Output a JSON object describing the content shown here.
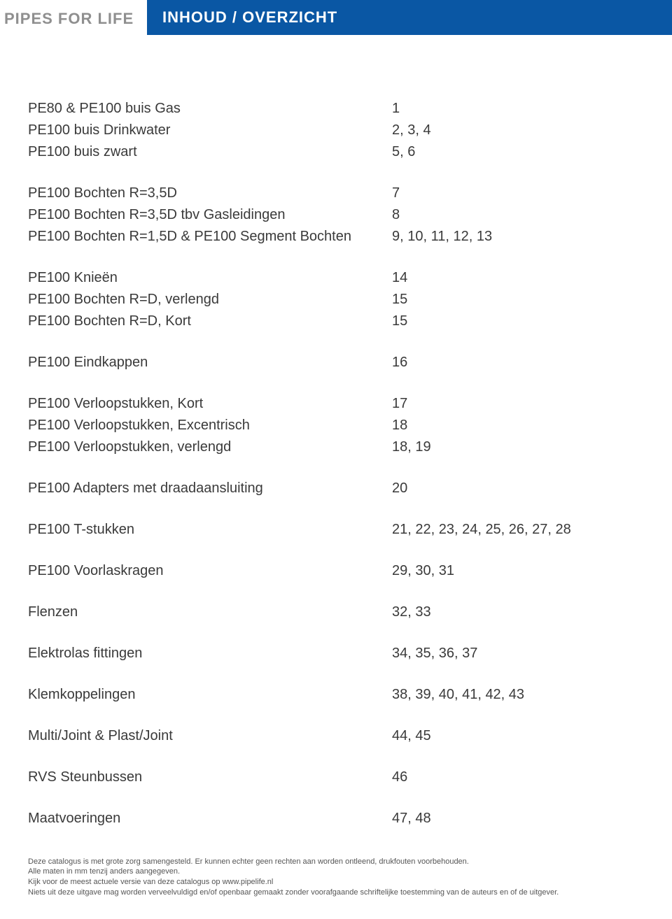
{
  "header": {
    "brand": "PIPES FOR LIFE",
    "title": "INHOUD / OVERZICHT"
  },
  "colors": {
    "brand_text": "#8f8f8f",
    "title_bg": "#0a57a4",
    "title_text": "#ffffff",
    "body_text": "#3a3a3a",
    "footer_text": "#555555"
  },
  "toc": [
    [
      {
        "label": "PE80 & PE100 buis Gas",
        "pages": "1"
      },
      {
        "label": "PE100 buis Drinkwater",
        "pages": "2, 3, 4"
      },
      {
        "label": "PE100 buis zwart",
        "pages": "5, 6"
      }
    ],
    [
      {
        "label": "PE100 Bochten R=3,5D",
        "pages": "7"
      },
      {
        "label": "PE100 Bochten R=3,5D tbv Gasleidingen",
        "pages": "8"
      },
      {
        "label": "PE100 Bochten R=1,5D & PE100 Segment Bochten",
        "pages": "9, 10, 11, 12, 13"
      }
    ],
    [
      {
        "label": "PE100 Knieën",
        "pages": "14"
      },
      {
        "label": "PE100 Bochten R=D, verlengd",
        "pages": "15"
      },
      {
        "label": "PE100 Bochten R=D, Kort",
        "pages": "15"
      }
    ],
    [
      {
        "label": "PE100 Eindkappen",
        "pages": "16"
      }
    ],
    [
      {
        "label": "PE100 Verloopstukken, Kort",
        "pages": "17"
      },
      {
        "label": "PE100 Verloopstukken, Excentrisch",
        "pages": "18"
      },
      {
        "label": "PE100 Verloopstukken, verlengd",
        "pages": "18, 19"
      }
    ],
    [
      {
        "label": "PE100 Adapters met draadaansluiting",
        "pages": "20"
      }
    ],
    [
      {
        "label": "PE100 T-stukken",
        "pages": "21, 22, 23, 24, 25, 26, 27, 28"
      }
    ],
    [
      {
        "label": "PE100 Voorlaskragen",
        "pages": "29, 30, 31"
      }
    ],
    [
      {
        "label": "Flenzen",
        "pages": "32, 33"
      }
    ],
    [
      {
        "label": "Elektrolas fittingen",
        "pages": "34, 35, 36, 37"
      }
    ],
    [
      {
        "label": "Klemkoppelingen",
        "pages": "38, 39, 40, 41, 42, 43"
      }
    ],
    [
      {
        "label": "Multi/Joint & Plast/Joint",
        "pages": "44, 45"
      }
    ],
    [
      {
        "label": "RVS Steunbussen",
        "pages": "46"
      }
    ],
    [
      {
        "label": "Maatvoeringen",
        "pages": "47, 48"
      }
    ]
  ],
  "footer": {
    "line1": "Deze catalogus is met grote zorg samengesteld. Er kunnen echter geen rechten aan worden ontleend, drukfouten voorbehouden.",
    "line2": "Alle maten in mm tenzij anders aangegeven.",
    "line3": "Kijk voor de meest actuele versie van deze catalogus op www.pipelife.nl",
    "line4": "Niets uit deze uitgave mag worden verveelvuldigd en/of openbaar gemaakt zonder voorafgaande schriftelijke toestemming van de auteurs en of de uitgever."
  }
}
